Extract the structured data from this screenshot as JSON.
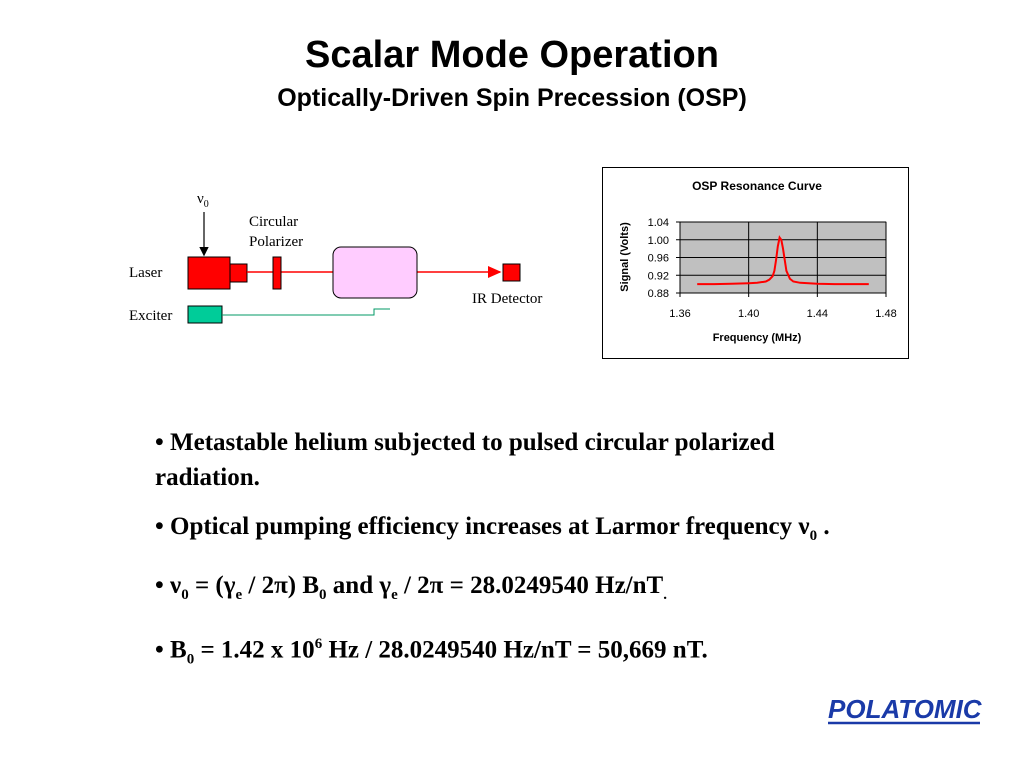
{
  "slide": {
    "title": "Scalar Mode Operation",
    "subtitle": "Optically-Driven Spin Precession (OSP)"
  },
  "diagram": {
    "nu_symbol": "ν",
    "nu_sub": "0",
    "polarizer_line1": "Circular",
    "polarizer_line2": "Polarizer",
    "laser_label": "Laser",
    "exciter_label": "Exciter",
    "detector_label": "IR Detector",
    "colors": {
      "laser": "#ff0000",
      "beam": "#ff0000",
      "cell": "#ffccff",
      "exciter": "#00cc99",
      "exciter_line": "#009966"
    }
  },
  "chart_data": {
    "type": "line",
    "title": "OSP Resonance Curve",
    "xlabel": "Frequency (MHz)",
    "ylabel": "Signal (Volts)",
    "xlim": [
      1.36,
      1.48
    ],
    "ylim": [
      0.88,
      1.04
    ],
    "xticks": [
      "1.36",
      "1.40",
      "1.44",
      "1.48"
    ],
    "yticks": [
      "1.04",
      "1.00",
      "0.96",
      "0.92",
      "0.88"
    ],
    "xtick_values": [
      1.36,
      1.4,
      1.44,
      1.48
    ],
    "ytick_values": [
      1.04,
      1.0,
      0.96,
      0.92,
      0.88
    ],
    "grid": true,
    "plot_background": "#c0c0c0",
    "series": [
      {
        "color": "#ff0000",
        "x": [
          1.37,
          1.38,
          1.39,
          1.4,
          1.405,
          1.41,
          1.412,
          1.414,
          1.415,
          1.416,
          1.417,
          1.418,
          1.419,
          1.42,
          1.421,
          1.422,
          1.424,
          1.426,
          1.43,
          1.44,
          1.45,
          1.46,
          1.47
        ],
        "y": [
          0.9,
          0.9,
          0.901,
          0.902,
          0.903,
          0.906,
          0.91,
          0.918,
          0.93,
          0.955,
          0.985,
          1.005,
          1.0,
          0.98,
          0.955,
          0.93,
          0.912,
          0.906,
          0.903,
          0.901,
          0.9,
          0.9,
          0.9
        ]
      }
    ]
  },
  "bullets": {
    "b1_text": "• Metastable helium subjected to pulsed circular polarized radiation.",
    "b2_pre": "• Optical pumping efficiency increases at Larmor frequency ",
    "b2_nu": "ν",
    "b2_sub": "0",
    "b2_post": " .",
    "b3_bullet": "• ",
    "b3_nu": "ν",
    "b3_sub0": "0",
    "b3_mid1": " = (",
    "b3_gamma1": "γ",
    "b3_sube1": "e",
    "b3_mid2": " / 2π) B",
    "b3_subB": "0",
    "b3_and": "  and ",
    "b3_gamma2": "γ",
    "b3_sube2": "e",
    "b3_end": " / 2π = 28.0249540 Hz/nT",
    "b3_dot": ".",
    "b4_pre": "• B",
    "b4_sub": "0",
    "b4_mid": " = 1.42 x 10",
    "b4_sup": "6",
    "b4_post": " Hz / 28.0249540 Hz/nT = 50,669 nT."
  },
  "logo": {
    "text": "POLATOMIC",
    "color": "#1a3aa8"
  }
}
